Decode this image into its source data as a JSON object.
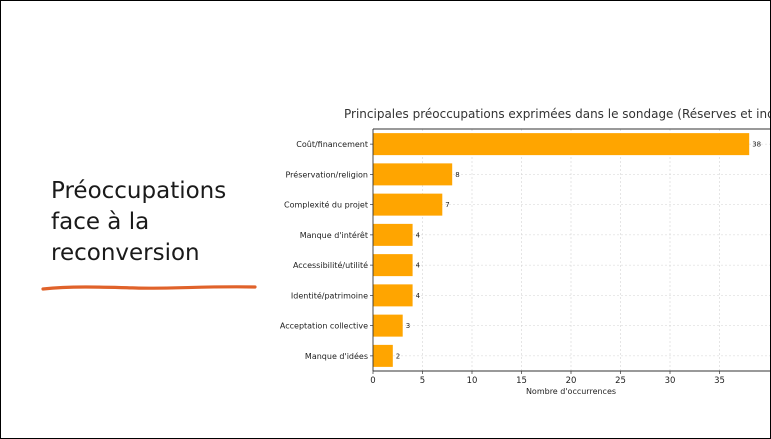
{
  "slide": {
    "title_lines": [
      "Préoccupations",
      "face à la",
      "reconversion"
    ],
    "underline_color": "#e0622a"
  },
  "chart_data": {
    "type": "bar",
    "orientation": "horizontal",
    "title": "Principales préoccupations exprimées dans le sondage (Réserves et inquiétu",
    "categories": [
      "Coût/financement",
      "Préservation/religion",
      "Complexité du projet",
      "Manque d'intérêt",
      "Accessibilité/utilité",
      "Identité/patrimoine",
      "Acceptation collective",
      "Manque d'idées"
    ],
    "values": [
      38,
      8,
      7,
      4,
      4,
      4,
      3,
      2
    ],
    "value_labels": [
      "38",
      "8",
      "7",
      "4",
      "4",
      "4",
      "3",
      "2"
    ],
    "xlabel": "Nombre d'occurrences",
    "ylabel": "",
    "xticks": [
      0,
      5,
      10,
      15,
      20,
      25,
      30,
      35
    ],
    "xtick_labels": [
      "0",
      "5",
      "10",
      "15",
      "20",
      "25",
      "30",
      "35"
    ],
    "xlim": [
      0,
      40
    ],
    "grid": true,
    "bar_color": "#ffa500"
  }
}
